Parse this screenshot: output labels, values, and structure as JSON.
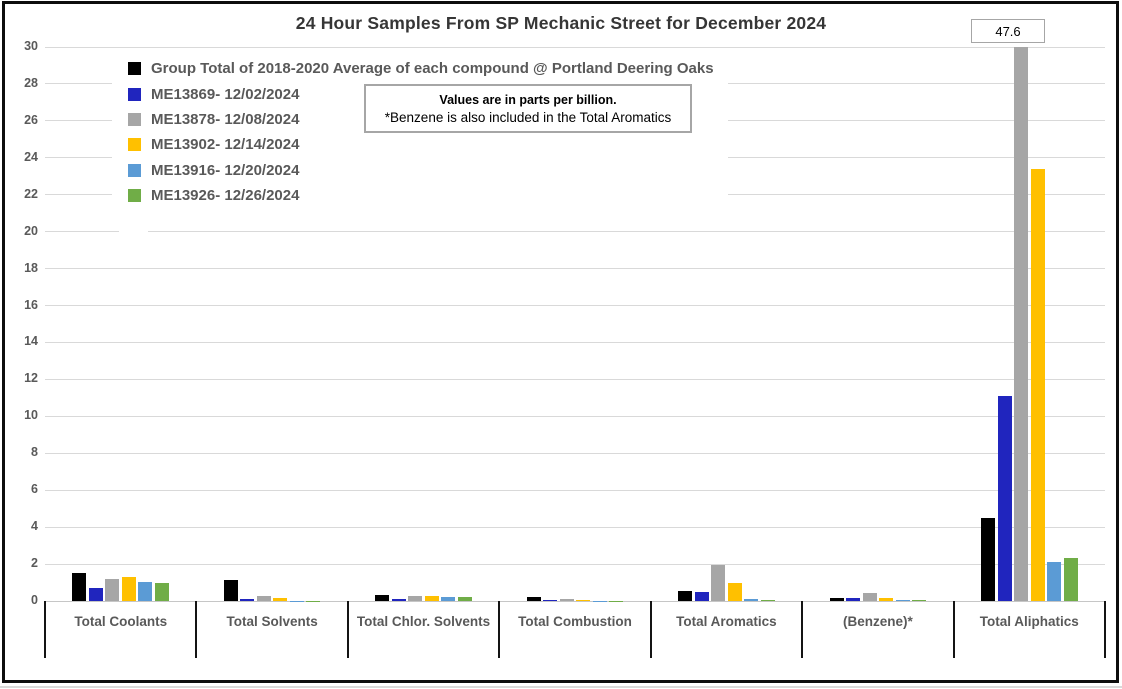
{
  "chart_data": {
    "type": "bar",
    "title": "24 Hour Samples From SP Mechanic Street for December 2024",
    "units_note": "Values are in parts per billion.",
    "categories": [
      "Total Coolants",
      "Total Solvents",
      "Total Chlor. Solvents",
      "Total Combustion",
      "Total Aromatics",
      "(Benzene)*",
      "Total Aliphatics"
    ],
    "series": [
      {
        "name": "Group Total of 2018-2020 Average of each compound @ Portland Deering Oaks",
        "color": "#000000",
        "values": [
          1.5,
          1.15,
          0.35,
          0.23,
          0.55,
          0.17,
          4.5
        ]
      },
      {
        "name": "ME13869- 12/02/2024",
        "color": "#2025BE",
        "values": [
          0.72,
          0.12,
          0.13,
          0.08,
          0.5,
          0.18,
          11.1
        ]
      },
      {
        "name": "ME13878- 12/08/2024",
        "color": "#A6A6A6",
        "values": [
          1.2,
          0.25,
          0.25,
          0.13,
          1.95,
          0.42,
          47.6
        ]
      },
      {
        "name": "ME13902- 12/14/2024",
        "color": "#FFC000",
        "values": [
          1.3,
          0.18,
          0.27,
          0.07,
          1.0,
          0.16,
          23.4
        ]
      },
      {
        "name": "ME13916- 12/20/2024",
        "color": "#5B9BD5",
        "values": [
          1.05,
          0.02,
          0.2,
          0.02,
          0.1,
          0.05,
          2.1
        ]
      },
      {
        "name": "ME13926- 12/26/2024",
        "color": "#70AD47",
        "values": [
          1.0,
          0.02,
          0.22,
          0.02,
          0.08,
          0.05,
          2.35
        ]
      }
    ],
    "ylim": [
      0,
      30
    ],
    "ytick_step": 2,
    "grid": true,
    "legend_position": "top-left-overlay",
    "bar_clip_callout": {
      "text": "47.6",
      "series_index": 2,
      "category_index": 6
    }
  },
  "note_box": {
    "line1": "Values are in parts per billion.",
    "line2": "*Benzene is also included in the Total Aromatics"
  }
}
